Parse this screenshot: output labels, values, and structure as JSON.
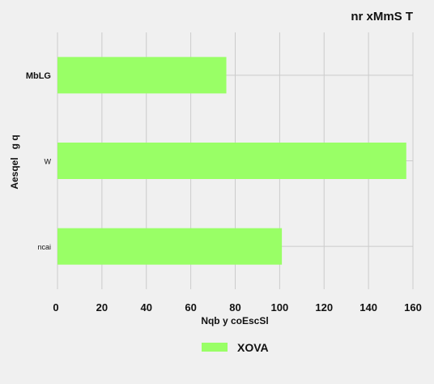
{
  "chart_data": {
    "type": "bar",
    "orientation": "horizontal",
    "title": "nr xMmS T",
    "xlabel": "Nqb  y coEscSl",
    "ylabel": "Aesqel   g q",
    "categories": [
      "MbLG",
      "W",
      "ncai"
    ],
    "category_font_weight": [
      "bold",
      "normal",
      "normal"
    ],
    "series": [
      {
        "name": "XOVA",
        "values": [
          76,
          157,
          101
        ],
        "color": "#99ff66"
      }
    ],
    "xlim": [
      0,
      160
    ],
    "xticks": [
      0,
      20,
      40,
      60,
      80,
      100,
      120,
      140,
      160
    ],
    "grid": true,
    "legend_position": "bottom-center"
  }
}
